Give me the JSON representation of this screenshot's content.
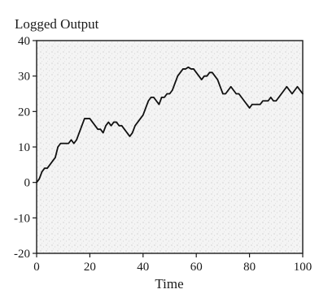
{
  "chart_data": {
    "type": "line",
    "title": "Logged Output",
    "xlabel": "Time",
    "ylabel": "",
    "xlim": [
      0,
      100
    ],
    "ylim": [
      -20,
      40
    ],
    "xticks": [
      0,
      20,
      40,
      60,
      80,
      100
    ],
    "yticks": [
      40,
      30,
      20,
      10,
      0,
      -10,
      -20
    ],
    "grid": false,
    "legend": "none",
    "background": "stippled",
    "colors": {
      "line": "#111111",
      "axis": "#1a1a1a",
      "stipple": "#8a8a8a"
    },
    "series": [
      {
        "x": [
          0,
          1,
          2,
          3,
          4,
          5,
          6,
          7,
          8,
          9,
          10,
          11,
          12,
          13,
          14,
          15,
          16,
          17,
          18,
          19,
          20,
          21,
          22,
          23,
          24,
          25,
          26,
          27,
          28,
          29,
          30,
          31,
          32,
          33,
          34,
          35,
          36,
          37,
          38,
          39,
          40,
          41,
          42,
          43,
          44,
          45,
          46,
          47,
          48,
          49,
          50,
          51,
          52,
          53,
          54,
          55,
          56,
          57,
          58,
          59,
          60,
          61,
          62,
          63,
          64,
          65,
          66,
          67,
          68,
          69,
          70,
          71,
          72,
          73,
          74,
          75,
          76,
          77,
          78,
          79,
          80,
          81,
          82,
          83,
          84,
          85,
          86,
          87,
          88,
          89,
          90,
          91,
          92,
          93,
          94,
          95,
          96,
          97,
          98,
          99,
          100
        ],
        "values": [
          0,
          1,
          3,
          4,
          4,
          5,
          6,
          7,
          10,
          11,
          11,
          11,
          11,
          12,
          11,
          12,
          14,
          16,
          18,
          18,
          18,
          17,
          16,
          15,
          15,
          14,
          16,
          17,
          16,
          17,
          17,
          16,
          16,
          15,
          14,
          13,
          14,
          16,
          17,
          18,
          19,
          21,
          23,
          24,
          24,
          23,
          22,
          24,
          24,
          25,
          25,
          26,
          28,
          30,
          31,
          32,
          32,
          32.5,
          32,
          32,
          31,
          30,
          29,
          30,
          30,
          31,
          31,
          30,
          29,
          27,
          25,
          25,
          26,
          27,
          26,
          25,
          25,
          24,
          23,
          22,
          21,
          22,
          22,
          22,
          22,
          23,
          23,
          23,
          24,
          23,
          23,
          24,
          25,
          26,
          27,
          26,
          25,
          26,
          27,
          26,
          25
        ]
      }
    ]
  }
}
